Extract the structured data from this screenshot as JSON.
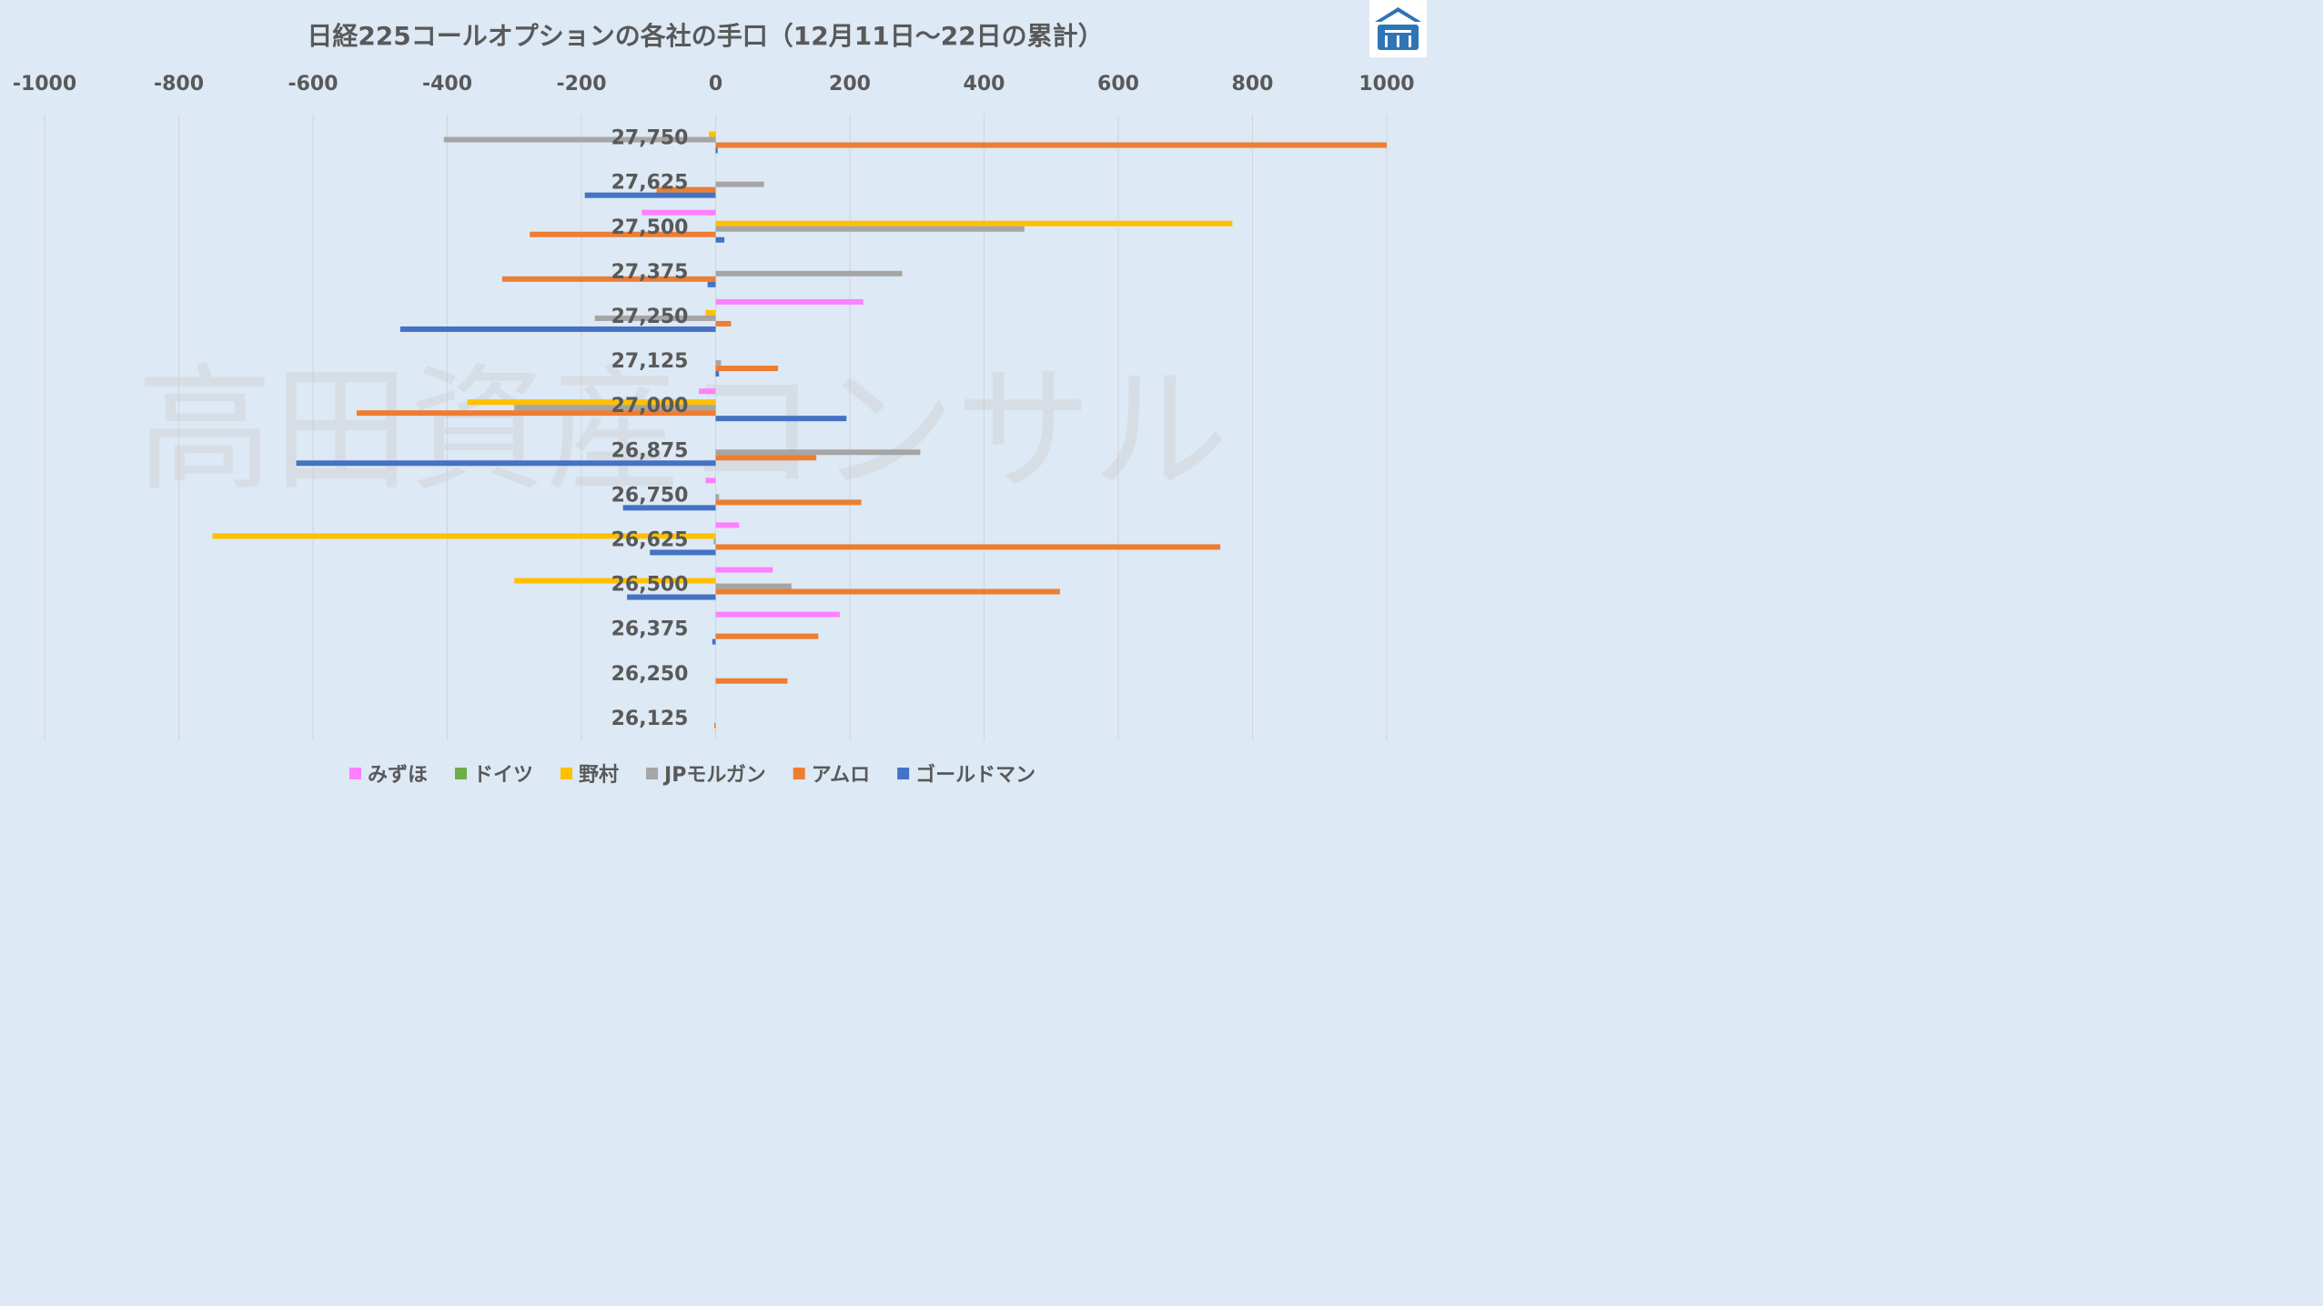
{
  "logo": {
    "name": "takada-logo-icon",
    "color": "#2e75b6"
  },
  "watermark": "高田資産コンサル",
  "chart_data": {
    "type": "bar",
    "orientation": "horizontal",
    "title": "日経225コールオプションの各社の手口（12月11日～22日の累計）",
    "xlim": [
      -1000,
      1000
    ],
    "xticks": [
      -1000,
      -800,
      -600,
      -400,
      -200,
      0,
      200,
      400,
      600,
      800,
      1000
    ],
    "xtick_labels": [
      "-1000",
      "-800",
      "-600",
      "-400",
      "-200",
      "0",
      "200",
      "400",
      "600",
      "800",
      "1000"
    ],
    "grid": true,
    "legend_position": "bottom",
    "categories": [
      "27,750",
      "27,625",
      "27,500",
      "27,375",
      "27,250",
      "27,125",
      "27,000",
      "26,875",
      "26,750",
      "26,625",
      "26,500",
      "26,375",
      "26,250",
      "26,125"
    ],
    "series": [
      {
        "name": "みずほ",
        "color": "#ff80ff",
        "values": [
          0,
          0,
          -110,
          0,
          220,
          0,
          -25,
          0,
          -15,
          35,
          85,
          185,
          0,
          0
        ]
      },
      {
        "name": "ドイツ",
        "color": "#70ad47",
        "values": [
          0,
          0,
          0,
          0,
          0,
          0,
          0,
          0,
          0,
          0,
          0,
          0,
          0,
          0
        ]
      },
      {
        "name": "野村",
        "color": "#ffc000",
        "values": [
          -10,
          0,
          770,
          0,
          -15,
          0,
          -370,
          0,
          0,
          -750,
          -300,
          0,
          0,
          0
        ]
      },
      {
        "name": "JPモルガン",
        "color": "#a5a5a5",
        "values": [
          -405,
          72,
          460,
          278,
          -180,
          8,
          -300,
          305,
          5,
          -3,
          113,
          0,
          0,
          0
        ]
      },
      {
        "name": "アムロ",
        "color": "#ed7d31",
        "values": [
          1000,
          -88,
          -277,
          -318,
          23,
          93,
          -535,
          150,
          217,
          752,
          513,
          153,
          107,
          -2
        ]
      },
      {
        "name": "ゴールドマン",
        "color": "#4472c4",
        "values": [
          3,
          -195,
          13,
          -12,
          -470,
          5,
          195,
          -625,
          -138,
          -98,
          -132,
          -5,
          0,
          0
        ]
      }
    ]
  }
}
